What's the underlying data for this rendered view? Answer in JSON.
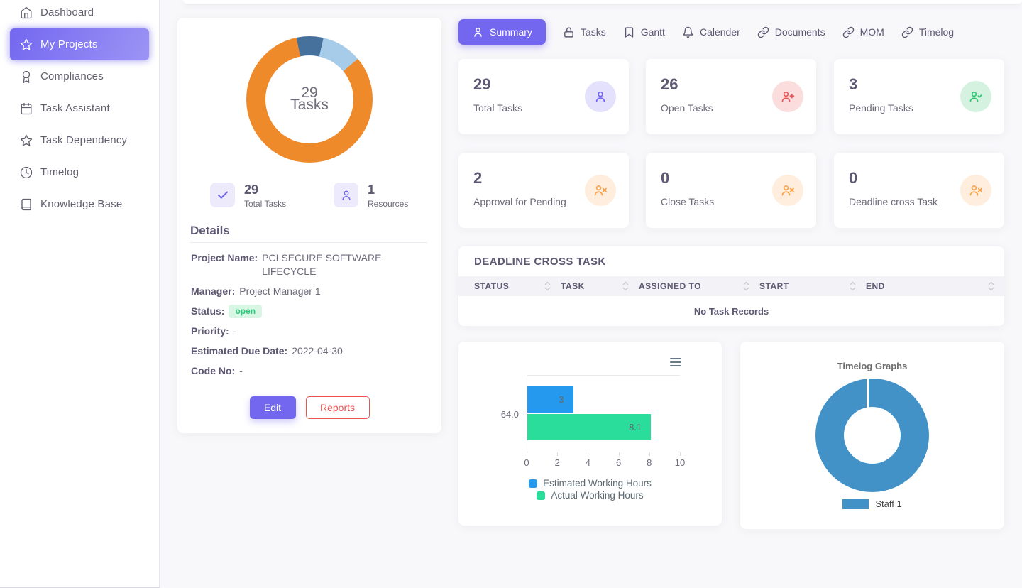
{
  "sidebar": {
    "items": [
      {
        "icon": "home",
        "label": "Dashboard"
      },
      {
        "icon": "star",
        "label": "My Projects",
        "active": true
      },
      {
        "icon": "award",
        "label": "Compliances"
      },
      {
        "icon": "calendar",
        "label": "Task Assistant"
      },
      {
        "icon": "star",
        "label": "Task Dependency"
      },
      {
        "icon": "clock",
        "label": "Timelog"
      },
      {
        "icon": "book",
        "label": "Knowledge Base"
      }
    ]
  },
  "tabs": [
    {
      "icon": "user",
      "label": "Summary",
      "active": true
    },
    {
      "icon": "lock",
      "label": "Tasks"
    },
    {
      "icon": "bookmark",
      "label": "Gantt"
    },
    {
      "icon": "bell",
      "label": "Calender"
    },
    {
      "icon": "link",
      "label": "Documents"
    },
    {
      "icon": "link",
      "label": "MOM"
    },
    {
      "icon": "link",
      "label": "Timelog"
    }
  ],
  "project_card": {
    "stats": [
      {
        "icon": "check",
        "value": "29",
        "label": "Total Tasks"
      },
      {
        "icon": "user",
        "value": "1",
        "label": "Resources"
      }
    ],
    "details_title": "Details",
    "details": [
      {
        "label": "Project Name:",
        "value": "PCI SECURE SOFTWARE LIFECYCLE"
      },
      {
        "label": "Manager:",
        "value": "Project Manager 1"
      },
      {
        "label": "Status:",
        "value": "open",
        "badge": true,
        "badge_color": "#28c76f"
      },
      {
        "label": "Priority:",
        "value": "-"
      },
      {
        "label": "Estimated Due Date:",
        "value": "2022-04-30"
      },
      {
        "label": "Code No:",
        "value": "-"
      }
    ],
    "edit_label": "Edit",
    "reports_label": "Reports"
  },
  "stat_cards": [
    {
      "value": "29",
      "label": "Total Tasks",
      "icon": "user",
      "theme": "purple",
      "color": "#7367f0"
    },
    {
      "value": "26",
      "label": "Open Tasks",
      "icon": "user-plus",
      "theme": "red",
      "color": "#ea5455"
    },
    {
      "value": "3",
      "label": "Pending Tasks",
      "icon": "user-check",
      "theme": "green",
      "color": "#28c76f"
    },
    {
      "value": "2",
      "label": "Approval for Pending",
      "icon": "user-x",
      "theme": "orange",
      "color": "#ff9f43"
    },
    {
      "value": "0",
      "label": "Close Tasks",
      "icon": "user-x",
      "theme": "orange",
      "color": "#ff9f43"
    },
    {
      "value": "0",
      "label": "Deadline cross Task",
      "icon": "user-x",
      "theme": "orange",
      "color": "#ff9f43"
    }
  ],
  "deadline_table": {
    "title": "DEADLINE CROSS TASK",
    "columns": [
      "STATUS",
      "TASK",
      "ASSIGNED TO",
      "START",
      "END"
    ],
    "empty_text": "No Task Records"
  },
  "chart_data": [
    {
      "type": "pie",
      "donut": true,
      "description": "Project tasks breakdown donut",
      "center_value": "29",
      "center_label": "Tasks",
      "total": 29,
      "values": [
        2,
        3,
        24
      ],
      "colors": [
        "#46719c",
        "#a7cce9",
        "#ef8a2b"
      ],
      "start_angle_deg": 348,
      "legend_position": "none"
    },
    {
      "type": "bar",
      "orientation": "horizontal",
      "categories": [
        "64.0"
      ],
      "series": [
        {
          "name": "Estimated Working Hours",
          "values": [
            3
          ],
          "color": "#2499ee"
        },
        {
          "name": "Actual Working Hours",
          "values": [
            8.1
          ],
          "color": "#2bdd9b"
        }
      ],
      "bar_labels": [
        "3",
        "8.1"
      ],
      "xlim": [
        0,
        10
      ],
      "xticks": [
        "0",
        "2",
        "4",
        "6",
        "8",
        "10"
      ],
      "grid": false,
      "legend_position": "bottom"
    },
    {
      "type": "pie",
      "donut": true,
      "title": "Timelog Graphs",
      "labels": [
        "Staff 1"
      ],
      "values": [
        100
      ],
      "colors": [
        "#4292c8"
      ],
      "legend_position": "bottom"
    }
  ]
}
